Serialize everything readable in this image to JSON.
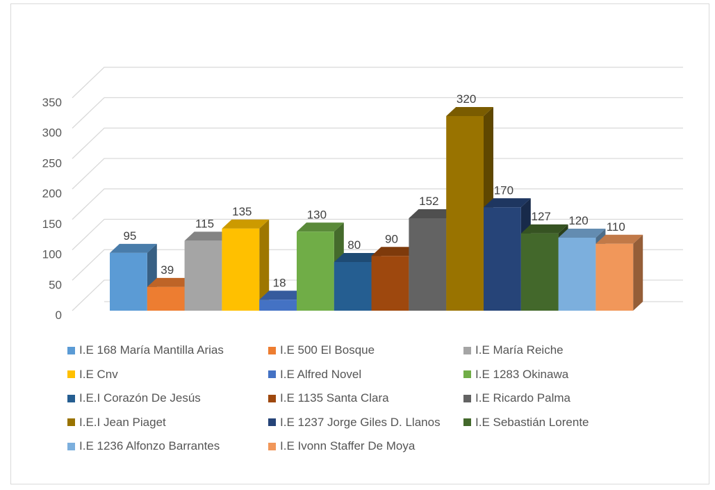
{
  "chart_data": {
    "type": "bar",
    "subtype": "3d-column",
    "title": "",
    "xlabel": "",
    "ylabel": "",
    "ylim": [
      0,
      350
    ],
    "yticks": [
      0,
      50,
      100,
      150,
      200,
      250,
      300,
      350
    ],
    "grid": true,
    "legend_position": "bottom",
    "series": [
      {
        "name": "I.E 168 María Mantilla Arias",
        "value": 95,
        "label": "95",
        "color": "#5b9bd5"
      },
      {
        "name": "I.E 500 El Bosque",
        "value": 39,
        "label": "39",
        "color": "#ed7d31"
      },
      {
        "name": "I.E María Reiche",
        "value": 115,
        "label": "115",
        "color": "#a5a5a5"
      },
      {
        "name": "I.E Cnv",
        "value": 135,
        "label": "135",
        "color": "#ffc000"
      },
      {
        "name": "I.E Alfred Novel",
        "value": 18,
        "label": "18",
        "color": "#4472c4"
      },
      {
        "name": "I.E 1283 Okinawa",
        "value": 130,
        "label": "130",
        "color": "#70ad47"
      },
      {
        "name": "I.E.I Corazón De Jesús",
        "value": 80,
        "label": "80",
        "color": "#255e91"
      },
      {
        "name": "I.E 1135 Santa Clara",
        "value": 90,
        "label": "90",
        "color": "#9e480e"
      },
      {
        "name": "I.E Ricardo Palma",
        "value": 152,
        "label": "152",
        "color": "#636363"
      },
      {
        "name": "I.E.I Jean Piaget",
        "value": 320,
        "label": "320",
        "color": "#997300"
      },
      {
        "name": "I.E 1237 Jorge Giles D. Llanos",
        "value": 170,
        "label": "170",
        "color": "#264478"
      },
      {
        "name": "I.E Sebastián Lorente",
        "value": 127,
        "label": "127",
        "color": "#43682b"
      },
      {
        "name": "I.E 1236 Alfonzo Barrantes",
        "value": 120,
        "label": "120",
        "color": "#7cafdd"
      },
      {
        "name": "I.E Ivonn Staffer De Moya",
        "value": 110,
        "label": "110",
        "color": "#f1975a"
      }
    ]
  }
}
